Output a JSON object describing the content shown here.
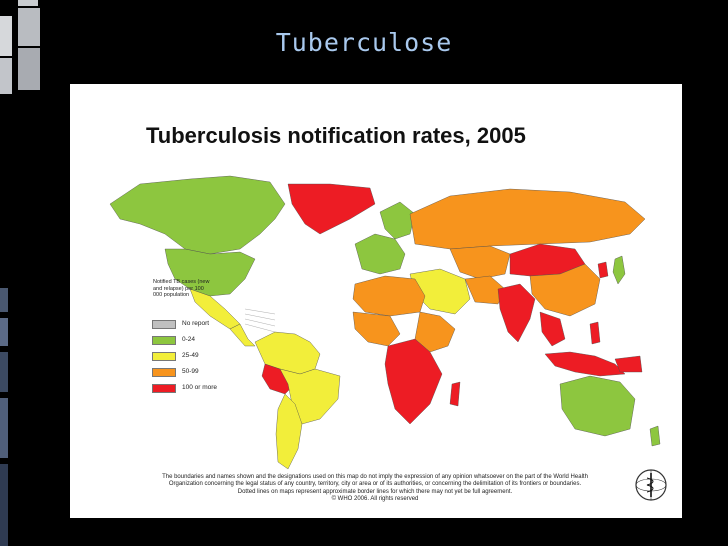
{
  "slide": {
    "title": "Tuberculose"
  },
  "map": {
    "title": "Tuberculosis notification rates, 2005",
    "legend_caption": "Notified TB cases (new and relapse) per 100 000 population",
    "legend": [
      {
        "label": "No report",
        "color": "#c0c0c0"
      },
      {
        "label": "0-24",
        "color": "#8dc63f"
      },
      {
        "label": "25-49",
        "color": "#f2ee3a"
      },
      {
        "label": "50-99",
        "color": "#f7941d"
      },
      {
        "label": "100 or more",
        "color": "#ed1c24"
      }
    ],
    "footnote": [
      "The boundaries and names shown and the designations used on this map do not imply the expression of any opinion whatsoever on the part of the World Health",
      "Organization concerning the legal status of any country, territory, city or area or of its authorities, or concerning the delimitation of its frontiers or boundaries.",
      "Dotted lines on maps represent approximate border lines for which there may not yet be full agreement.",
      "© WHO 2006. All rights reserved"
    ],
    "logo": "who-emblem-icon"
  }
}
